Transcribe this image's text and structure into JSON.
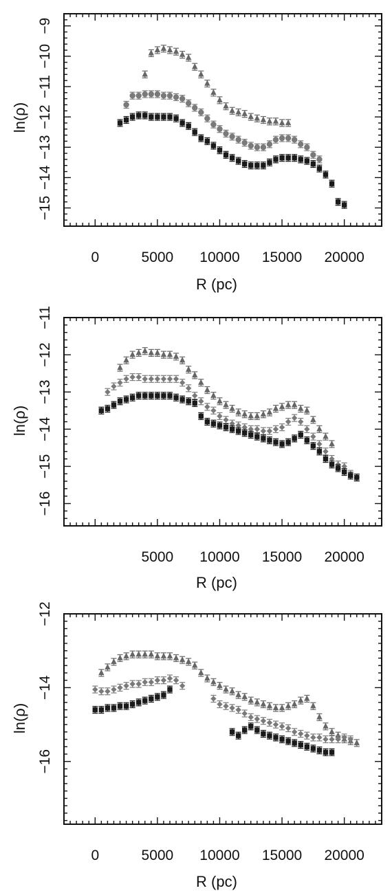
{
  "chart_data": [
    {
      "type": "scatter",
      "xlabel": "R (pc)",
      "ylabel": "ln(ρ)",
      "xlim": [
        -2500,
        23000
      ],
      "ylim": [
        -15.6,
        -8.6
      ],
      "xticks": [
        0,
        5000,
        10000,
        15000,
        20000
      ],
      "yticks": [
        -15,
        -14,
        -13,
        -12,
        -11,
        -10,
        -9
      ],
      "ytick_labels": [
        "−15",
        "−14",
        "−13",
        "−12",
        "−11",
        "−10",
        "−9"
      ],
      "series": [
        {
          "marker": "triangle",
          "color": "#666666",
          "x": [
            4000,
            4500,
            5000,
            5500,
            6000,
            6500,
            7000,
            7500,
            8000,
            8500,
            9000,
            9500,
            10000,
            10500,
            11000,
            11500,
            12000,
            12500,
            13000,
            13500,
            14000,
            14500,
            15000,
            15500
          ],
          "y": [
            -10.6,
            -9.9,
            -9.8,
            -9.75,
            -9.8,
            -9.85,
            -9.95,
            -10.05,
            -10.35,
            -10.6,
            -10.9,
            -11.2,
            -11.45,
            -11.65,
            -11.8,
            -11.85,
            -11.9,
            -12.0,
            -12.05,
            -12.1,
            -12.15,
            -12.15,
            -12.2,
            -12.2
          ]
        },
        {
          "marker": "circle",
          "color": "#7a7a7a",
          "x": [
            2500,
            3000,
            3500,
            4000,
            4500,
            5000,
            5500,
            6000,
            6500,
            7000,
            7500,
            8000,
            8500,
            9000,
            9500,
            10000,
            10500,
            11000,
            11500,
            12000,
            12500,
            13000,
            13500,
            14000,
            14500,
            15000,
            15500,
            16000,
            16500,
            17000,
            17500,
            18000
          ],
          "y": [
            -11.6,
            -11.3,
            -11.3,
            -11.25,
            -11.25,
            -11.25,
            -11.3,
            -11.3,
            -11.35,
            -11.4,
            -11.55,
            -11.7,
            -11.85,
            -12.05,
            -12.25,
            -12.4,
            -12.55,
            -12.65,
            -12.75,
            -12.85,
            -12.95,
            -13.0,
            -13.0,
            -12.9,
            -12.75,
            -12.7,
            -12.7,
            -12.75,
            -12.9,
            -13.0,
            -13.25,
            -13.4
          ]
        },
        {
          "marker": "square",
          "color": "#1a1a1a",
          "x": [
            2000,
            2500,
            3000,
            3500,
            4000,
            4500,
            5000,
            5500,
            6000,
            6500,
            7000,
            7500,
            8000,
            8500,
            9000,
            9500,
            10000,
            10500,
            11000,
            11500,
            12000,
            12500,
            13000,
            13500,
            14000,
            14500,
            15000,
            15500,
            16000,
            16500,
            17000,
            17500,
            18000,
            18500,
            19000,
            19500,
            20000
          ],
          "y": [
            -12.2,
            -12.1,
            -12.0,
            -11.95,
            -11.95,
            -12.0,
            -12.0,
            -12.0,
            -12.0,
            -12.05,
            -12.2,
            -12.3,
            -12.5,
            -12.7,
            -12.8,
            -12.95,
            -13.1,
            -13.25,
            -13.35,
            -13.45,
            -13.55,
            -13.6,
            -13.6,
            -13.6,
            -13.5,
            -13.4,
            -13.35,
            -13.35,
            -13.35,
            -13.4,
            -13.45,
            -13.55,
            -13.7,
            -13.9,
            -14.2,
            -14.8,
            -14.9
          ]
        }
      ]
    },
    {
      "type": "scatter",
      "xlabel": "R (pc)",
      "ylabel": "ln(ρ)",
      "xlim": [
        -2500,
        23000
      ],
      "ylim": [
        -16.6,
        -11
      ],
      "xticks": [
        5000,
        10000,
        15000,
        20000
      ],
      "yticks": [
        -16,
        -15,
        -14,
        -13,
        -12,
        -11
      ],
      "ytick_labels": [
        "−16",
        "−15",
        "−14",
        "−13",
        "−12",
        "−11"
      ],
      "series": [
        {
          "marker": "triangle",
          "color": "#666666",
          "x": [
            2000,
            2500,
            3000,
            3500,
            4000,
            4500,
            5000,
            5500,
            6000,
            6500,
            7000,
            7500,
            8000,
            8500,
            9000,
            9500,
            10000,
            10500,
            11000,
            11500,
            12000,
            12500,
            13000,
            13500,
            14000,
            14500,
            15000,
            15500,
            16000,
            16500,
            17000,
            17500,
            18000,
            18500,
            19000
          ],
          "y": [
            -12.35,
            -12.15,
            -12.0,
            -11.95,
            -11.9,
            -11.95,
            -11.95,
            -12.0,
            -12.0,
            -12.05,
            -12.15,
            -12.4,
            -12.55,
            -12.75,
            -12.95,
            -13.1,
            -13.25,
            -13.35,
            -13.45,
            -13.55,
            -13.6,
            -13.65,
            -13.65,
            -13.6,
            -13.55,
            -13.45,
            -13.4,
            -13.35,
            -13.35,
            -13.45,
            -13.5,
            -13.75,
            -14.0,
            -14.2,
            -14.4
          ]
        },
        {
          "marker": "diamond",
          "color": "#7a7a7a",
          "x": [
            1000,
            1500,
            2000,
            2500,
            3000,
            3500,
            4000,
            4500,
            5000,
            5500,
            6000,
            6500,
            7000,
            7500,
            8000,
            8500,
            9000,
            9500,
            10000,
            10500,
            11000,
            11500,
            12000,
            12500,
            13000,
            13500,
            14000,
            14500,
            15000,
            15500,
            16000,
            16500,
            17000,
            17500,
            18000,
            18500,
            19000,
            19500,
            20000,
            20500,
            21000
          ],
          "y": [
            -13.0,
            -12.85,
            -12.75,
            -12.65,
            -12.6,
            -12.6,
            -12.65,
            -12.65,
            -12.65,
            -12.65,
            -12.65,
            -12.65,
            -12.75,
            -12.9,
            -13.1,
            -13.25,
            -13.4,
            -13.5,
            -13.65,
            -13.75,
            -13.85,
            -13.9,
            -13.95,
            -14.0,
            -14.0,
            -14.05,
            -14.05,
            -14.0,
            -13.95,
            -13.8,
            -13.7,
            -13.8,
            -14.0,
            -14.2,
            -14.4,
            -14.6,
            -14.8,
            -14.95,
            -15.0,
            -15.2,
            -15.3
          ]
        },
        {
          "marker": "square",
          "color": "#1a1a1a",
          "x": [
            500,
            1000,
            1500,
            2000,
            2500,
            3000,
            3500,
            4000,
            4500,
            5000,
            5500,
            6000,
            6500,
            7000,
            7500,
            8000,
            8500,
            9000,
            9500,
            10000,
            10500,
            11000,
            11500,
            12000,
            12500,
            13000,
            13500,
            14000,
            14500,
            15000,
            15500,
            16000,
            16500,
            17000,
            17500,
            18000,
            18500,
            19000,
            19500,
            20000,
            20500,
            21000
          ],
          "y": [
            -13.5,
            -13.45,
            -13.35,
            -13.25,
            -13.2,
            -13.15,
            -13.1,
            -13.1,
            -13.1,
            -13.1,
            -13.1,
            -13.1,
            -13.15,
            -13.2,
            -13.25,
            -13.3,
            -13.65,
            -13.8,
            -13.85,
            -13.9,
            -13.95,
            -14.0,
            -14.05,
            -14.1,
            -14.15,
            -14.2,
            -14.25,
            -14.3,
            -14.35,
            -14.4,
            -14.35,
            -14.25,
            -14.15,
            -14.3,
            -14.45,
            -14.6,
            -14.8,
            -14.95,
            -15.05,
            -15.15,
            -15.25,
            -15.3
          ]
        }
      ]
    },
    {
      "type": "scatter",
      "xlabel": "R (pc)",
      "ylabel": "ln(ρ)",
      "xlim": [
        -2500,
        23000
      ],
      "ylim": [
        -17.7,
        -12
      ],
      "xticks": [
        0,
        5000,
        10000,
        15000,
        20000
      ],
      "yticks": [
        -16,
        -14,
        -12
      ],
      "ytick_labels": [
        "−16",
        "−14",
        "−12"
      ],
      "series": [
        {
          "marker": "triangle",
          "color": "#666666",
          "x": [
            500,
            1000,
            1500,
            2000,
            2500,
            3000,
            3500,
            4000,
            4500,
            5000,
            5500,
            6000,
            6500,
            7000,
            7500,
            8000,
            8500,
            9000,
            9500,
            10000,
            10500,
            11000,
            11500,
            12000,
            12500,
            13000,
            13500,
            14000,
            14500,
            15000,
            15500,
            16000,
            16500,
            17000,
            17500,
            18000,
            18500,
            19000,
            19500,
            20000,
            20500,
            21000
          ],
          "y": [
            -13.6,
            -13.45,
            -13.3,
            -13.2,
            -13.15,
            -13.1,
            -13.1,
            -13.1,
            -13.1,
            -13.15,
            -13.15,
            -13.15,
            -13.2,
            -13.25,
            -13.3,
            -13.4,
            -13.6,
            -13.75,
            -13.85,
            -13.95,
            -14.05,
            -14.1,
            -14.2,
            -14.25,
            -14.35,
            -14.4,
            -14.45,
            -14.5,
            -14.55,
            -14.55,
            -14.5,
            -14.45,
            -14.35,
            -14.3,
            -14.5,
            -14.8,
            -15.05,
            -15.2,
            -15.3,
            -15.4,
            -15.45,
            -15.5
          ]
        },
        {
          "marker": "diamond",
          "color": "#7a7a7a",
          "x": [
            0,
            500,
            1000,
            1500,
            2000,
            2500,
            3000,
            3500,
            4000,
            4500,
            5000,
            5500,
            6000,
            6500,
            7000,
            9500,
            10000,
            10500,
            11000,
            11500,
            12000,
            12500,
            13000,
            13500,
            14000,
            14500,
            15000,
            15500,
            16000,
            16500,
            17000,
            17500,
            18000,
            18500,
            19000,
            19500,
            20000,
            20500
          ],
          "y": [
            -14.05,
            -14.1,
            -14.1,
            -14.05,
            -14.0,
            -13.95,
            -13.9,
            -13.9,
            -13.85,
            -13.85,
            -13.8,
            -13.8,
            -13.75,
            -13.8,
            -13.95,
            -14.3,
            -14.45,
            -14.5,
            -14.55,
            -14.6,
            -14.7,
            -14.8,
            -14.85,
            -14.9,
            -14.95,
            -15.0,
            -15.05,
            -15.1,
            -15.2,
            -15.25,
            -15.3,
            -15.35,
            -15.35,
            -15.4,
            -15.4,
            -15.4,
            -15.35,
            -15.4
          ]
        },
        {
          "marker": "square",
          "color": "#1a1a1a",
          "x": [
            0,
            500,
            1000,
            1500,
            2000,
            2500,
            3000,
            3500,
            4000,
            4500,
            5000,
            5500,
            6000,
            11000,
            11500,
            12000,
            12500,
            13000,
            13500,
            14000,
            14500,
            15000,
            15500,
            16000,
            16500,
            17000,
            17500,
            18000,
            18500,
            19000
          ],
          "y": [
            -14.6,
            -14.6,
            -14.55,
            -14.55,
            -14.5,
            -14.5,
            -14.45,
            -14.4,
            -14.35,
            -14.3,
            -14.25,
            -14.2,
            -14.05,
            -15.2,
            -15.3,
            -15.15,
            -15.05,
            -15.15,
            -15.25,
            -15.3,
            -15.35,
            -15.4,
            -15.45,
            -15.5,
            -15.55,
            -15.6,
            -15.65,
            -15.7,
            -15.75,
            -15.75
          ]
        }
      ]
    }
  ]
}
